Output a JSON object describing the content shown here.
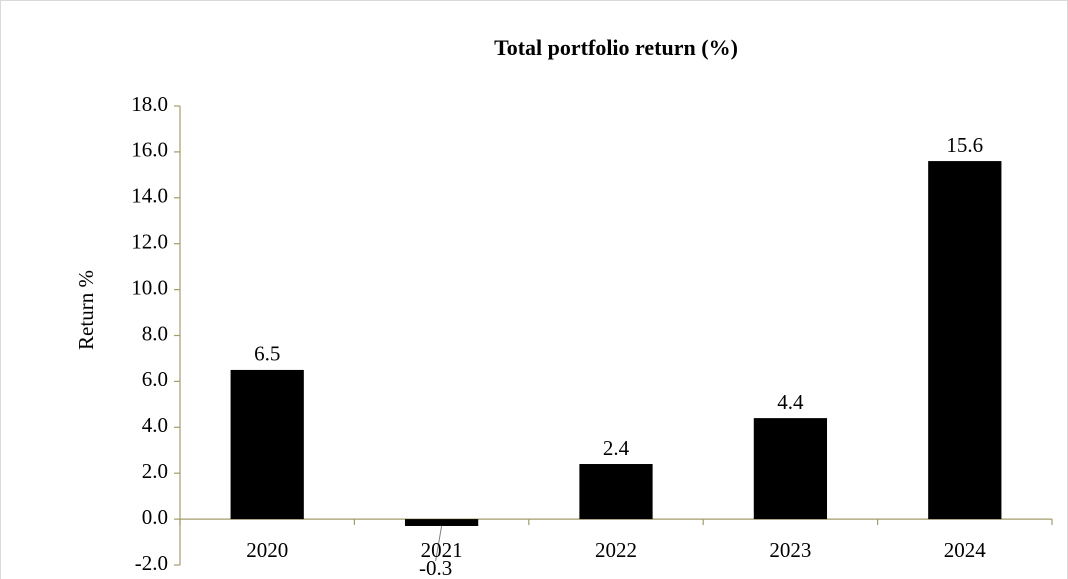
{
  "chart_data": {
    "type": "bar",
    "title": "Total portfolio return (%)",
    "y_label": "Return %",
    "categories": [
      "2020",
      "2021",
      "2022",
      "2023",
      "2024"
    ],
    "values": [
      6.5,
      -0.3,
      2.4,
      4.4,
      15.6
    ],
    "color": "#000000",
    "ylim": [
      -2,
      18
    ],
    "yticks": [
      {
        "value": -2,
        "label": "-2.0"
      },
      {
        "value": 0,
        "label": "0.0"
      },
      {
        "value": 2,
        "label": "2.0"
      },
      {
        "value": 4,
        "label": "4.0"
      },
      {
        "value": 6,
        "label": "6.0"
      },
      {
        "value": 8,
        "label": "8.0"
      },
      {
        "value": 10,
        "label": "10.0"
      },
      {
        "value": 12,
        "label": "12.0"
      },
      {
        "value": 14,
        "label": "14.0"
      },
      {
        "value": 16,
        "label": "16.0"
      },
      {
        "value": 18,
        "label": "18.0"
      }
    ],
    "grid": false
  }
}
